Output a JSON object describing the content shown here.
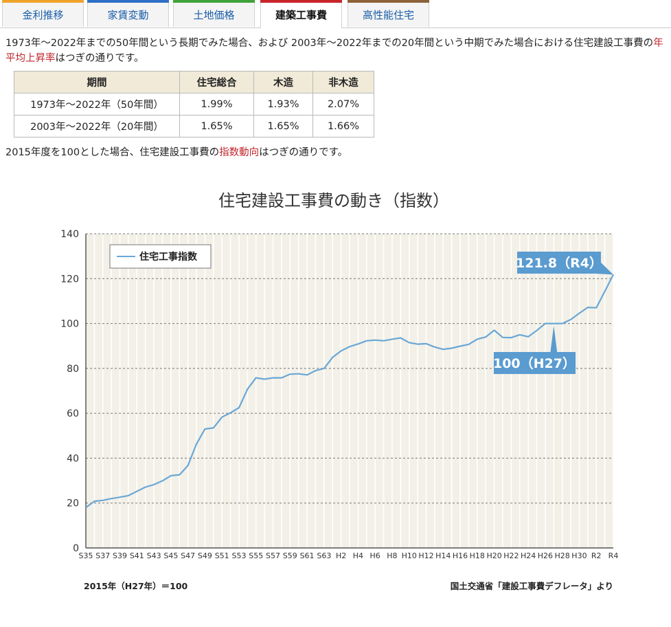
{
  "tabs": [
    {
      "label": "金利推移",
      "color": "#f0a32a",
      "active": false
    },
    {
      "label": "家賃変動",
      "color": "#2f6fc6",
      "active": false
    },
    {
      "label": "土地価格",
      "color": "#3fa33a",
      "active": false
    },
    {
      "label": "建築工事費",
      "color": "#c8232b",
      "active": true
    },
    {
      "label": "高性能住宅",
      "color": "#8c6239",
      "active": false
    }
  ],
  "intro": {
    "part1": "1973年～2022年までの50年間という長期でみた場合、および 2003年～2022年までの20年間という中期でみた場合における住宅建設工事費の",
    "highlight": "年平均上昇率",
    "part2": "はつぎの通りです。"
  },
  "table": {
    "headers": [
      "期間",
      "住宅総合",
      "木造",
      "非木造"
    ],
    "rows": [
      [
        "1973年～2022年（50年間）",
        "1.99%",
        "1.93%",
        "2.07%"
      ],
      [
        "2003年～2022年（20年間）",
        "1.65%",
        "1.65%",
        "1.66%"
      ]
    ]
  },
  "line2": {
    "part1": "2015年度を100とした場合、住宅建設工事費の",
    "highlight": "指数動向",
    "part2": "はつぎの通りです。"
  },
  "chart_data": {
    "type": "line",
    "title": "住宅建設工事費の動き（指数）",
    "xlabel": "",
    "ylabel": "",
    "ylim": [
      0,
      140
    ],
    "yticks": [
      0,
      20,
      40,
      60,
      80,
      100,
      120,
      140
    ],
    "grid": true,
    "legend_position": "top-left",
    "x_tick_labels": [
      "S35",
      "S37",
      "S39",
      "S41",
      "S43",
      "S45",
      "S47",
      "S49",
      "S51",
      "S53",
      "S55",
      "S57",
      "S59",
      "S61",
      "S63",
      "H2",
      "H4",
      "H6",
      "H8",
      "H10",
      "H12",
      "H14",
      "H16",
      "H18",
      "H20",
      "H22",
      "H24",
      "H26",
      "H28",
      "H30",
      "R2",
      "R4"
    ],
    "x": [
      "S35",
      "S36",
      "S37",
      "S38",
      "S39",
      "S40",
      "S41",
      "S42",
      "S43",
      "S44",
      "S45",
      "S46",
      "S47",
      "S48",
      "S49",
      "S50",
      "S51",
      "S52",
      "S53",
      "S54",
      "S55",
      "S56",
      "S57",
      "S58",
      "S59",
      "S60",
      "S61",
      "S62",
      "S63",
      "H1",
      "H2",
      "H3",
      "H4",
      "H5",
      "H6",
      "H7",
      "H8",
      "H9",
      "H10",
      "H11",
      "H12",
      "H13",
      "H14",
      "H15",
      "H16",
      "H17",
      "H18",
      "H19",
      "H20",
      "H21",
      "H22",
      "H23",
      "H24",
      "H25",
      "H26",
      "H27",
      "H28",
      "H29",
      "H30",
      "R1",
      "R2",
      "R3",
      "R4"
    ],
    "series": [
      {
        "name": "住宅工事指数",
        "color": "#6aa7d6",
        "values": [
          18.0,
          20.8,
          21.2,
          22.0,
          22.6,
          23.3,
          25.2,
          27.1,
          28.2,
          29.9,
          32.2,
          32.6,
          36.7,
          46.3,
          53.0,
          53.5,
          58.3,
          60.2,
          62.5,
          70.8,
          75.8,
          75.2,
          75.8,
          75.8,
          77.4,
          77.6,
          77.1,
          79.0,
          80.0,
          84.9,
          87.8,
          89.7,
          90.9,
          92.3,
          92.6,
          92.3,
          93.0,
          93.6,
          91.5,
          90.8,
          91.0,
          89.5,
          88.5,
          89.0,
          89.9,
          90.7,
          93.0,
          94.0,
          97.0,
          93.8,
          93.7,
          95.0,
          94.1,
          96.9,
          100.0,
          100.0,
          100.0,
          101.8,
          104.6,
          107.2,
          107.0,
          114.3,
          121.8
        ]
      }
    ],
    "annotations": [
      {
        "label": "121.8（R4）",
        "x": "R4",
        "y": 121.8
      },
      {
        "label": "100（H27）",
        "x": "H27",
        "y": 100.0
      }
    ],
    "footnote_left": "2015年（H27年）＝100",
    "footnote_right": "国土交通省「建設工事費デフレータ」より"
  }
}
